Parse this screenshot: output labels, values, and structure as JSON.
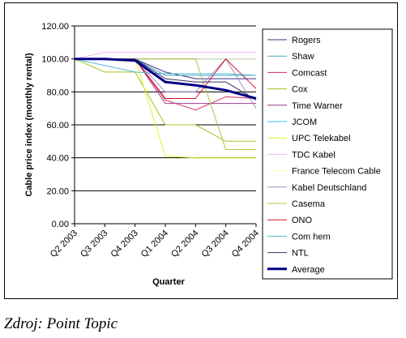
{
  "caption": "Zdroj: Point Topic",
  "chart_data": {
    "type": "line",
    "title": "",
    "xlabel": "Quarter",
    "ylabel": "Cable price index (monthly rental)",
    "categories": [
      "Q2 2003",
      "Q3 2003",
      "Q4 2003",
      "Q1 2004",
      "Q2 2004",
      "Q3 2004",
      "Q4 2004"
    ],
    "y_ticks": [
      "0.00",
      "20.00",
      "40.00",
      "60.00",
      "80.00",
      "100.00",
      "120.00"
    ],
    "ylim": [
      0,
      120
    ],
    "grid": "horizontal",
    "legend_position": "right",
    "series": [
      {
        "name": "Rogers",
        "color": "#33338a",
        "width": 1,
        "values": [
          100,
          100,
          100,
          92,
          88,
          88,
          88
        ]
      },
      {
        "name": "Shaw",
        "color": "#4fa6b8",
        "width": 1,
        "values": [
          100,
          100,
          100,
          90,
          90,
          90,
          90
        ]
      },
      {
        "name": "Comcast",
        "color": "#d9305a",
        "width": 1,
        "values": [
          100,
          100,
          100,
          75,
          69,
          77,
          76
        ]
      },
      {
        "name": "Cox",
        "color": "#a3c21a",
        "width": 1,
        "values": [
          100,
          92,
          92,
          60,
          60,
          50,
          50
        ]
      },
      {
        "name": "Time Warner",
        "color": "#9a3b8f",
        "width": 1,
        "values": [
          100,
          100,
          100,
          73,
          73,
          73,
          73
        ]
      },
      {
        "name": "JCOM",
        "color": "#37c4e8",
        "width": 1,
        "values": [
          100,
          100,
          100,
          100,
          100,
          100,
          100
        ]
      },
      {
        "name": "UPC Telekabel",
        "color": "#e5f022",
        "width": 1,
        "values": [
          100,
          100,
          100,
          41,
          40,
          40,
          40
        ]
      },
      {
        "name": "TDC Kabel",
        "color": "#eab8f0",
        "width": 1,
        "values": [
          100,
          104,
          104,
          104,
          104,
          104,
          104
        ]
      },
      {
        "name": "France Telecom Cable",
        "color": "#fffac0",
        "width": 1,
        "values": [
          100,
          100,
          100,
          100,
          100,
          100,
          100
        ]
      },
      {
        "name": "Kabel Deutschland",
        "color": "#a989c4",
        "width": 1,
        "values": [
          100,
          100,
          100,
          80,
          80,
          100,
          70
        ]
      },
      {
        "name": "Casema",
        "color": "#b4c43c",
        "width": 1,
        "values": [
          100,
          100,
          100,
          100,
          100,
          45,
          45
        ]
      },
      {
        "name": "ONO",
        "color": "#d0102a",
        "width": 1,
        "values": [
          100,
          100,
          100,
          76,
          76,
          100,
          82
        ]
      },
      {
        "name": "Com hem",
        "color": "#4db7d6",
        "width": 1,
        "values": [
          100,
          96,
          92,
          91,
          91,
          91,
          90
        ]
      },
      {
        "name": "NTL",
        "color": "#333366",
        "width": 1,
        "values": [
          100,
          100,
          100,
          88,
          86,
          86,
          75
        ]
      },
      {
        "name": "Average",
        "color": "#000080",
        "width": 3,
        "values": [
          100,
          100,
          99,
          86,
          84,
          81,
          76
        ]
      }
    ]
  }
}
